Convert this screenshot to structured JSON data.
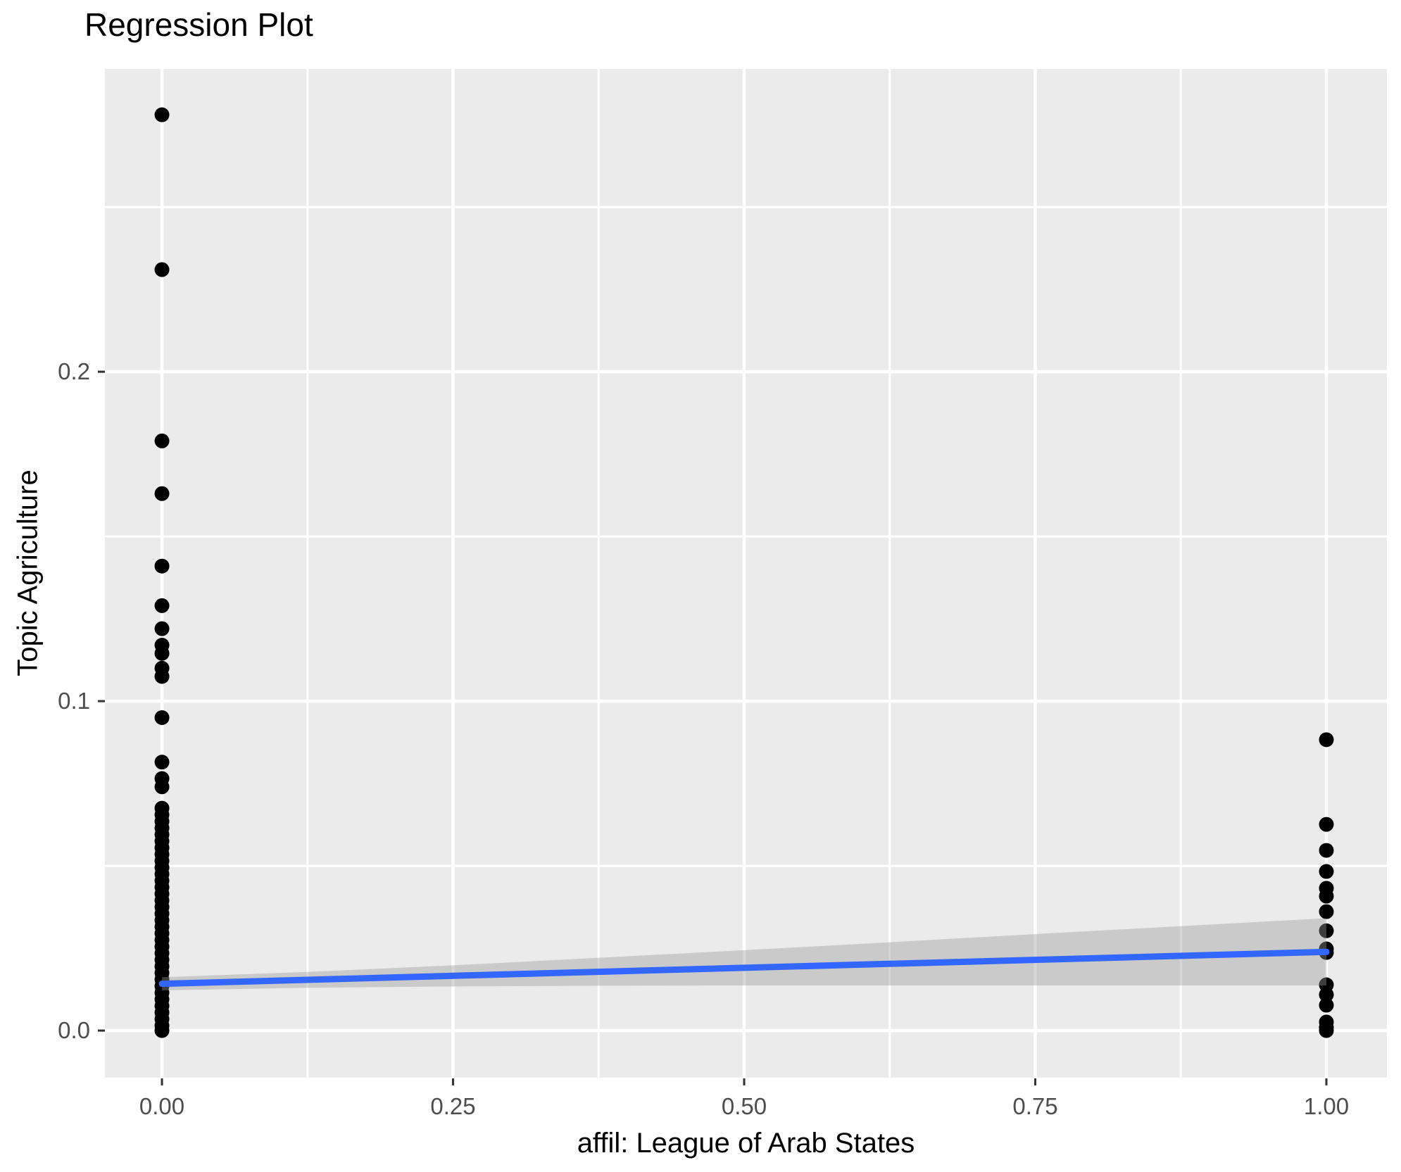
{
  "title": "Regression Plot",
  "colors": {
    "panel_background": "#EBEBEB",
    "gridline": "#FFFFFF",
    "point": "#000000",
    "regression_line": "#3366FF",
    "confidence_band": "rgba(153,153,153,0.4)",
    "tick_mark": "#333333",
    "tick_label": "#4D4D4D",
    "title_text": "#000000"
  },
  "chart_data": {
    "type": "scatter",
    "title": "Regression Plot",
    "xlabel": "affil: League of Arab States",
    "ylabel": "Topic Agriculture",
    "grid": "on",
    "legend": "none",
    "axes": {
      "x": {
        "label": "affil: League of Arab States",
        "ticks": [
          0,
          0.25,
          0.5,
          0.75,
          1
        ],
        "tick_labels": [
          "0.00",
          "0.25",
          "0.50",
          "0.75",
          "1.00"
        ],
        "minor_ticks": [
          0.125,
          0.375,
          0.625,
          0.875
        ],
        "lim": [
          -0.049,
          1.052
        ]
      },
      "y": {
        "label": "Topic Agriculture",
        "ticks": [
          0,
          0.1,
          0.2
        ],
        "tick_labels": [
          "0.0",
          "0.1",
          "0.2"
        ],
        "minor_ticks": [
          0.05,
          0.15,
          0.25
        ],
        "lim": [
          -0.0143,
          0.2919
        ]
      }
    },
    "series": [
      {
        "name": "affil = 0",
        "x_value": 0,
        "values": [
          0.278,
          0.231,
          0.179,
          0.163,
          0.141,
          0.129,
          0.122,
          0.117,
          0.1145,
          0.11,
          0.1075,
          0.095,
          0.0815,
          0.0765,
          0.074,
          0.0675,
          0.0655,
          0.0635,
          0.0615,
          0.0595,
          0.0575,
          0.0555,
          0.0535,
          0.0515,
          0.0495,
          0.0475,
          0.0455,
          0.0435,
          0.0415,
          0.0395,
          0.0375,
          0.0355,
          0.0335,
          0.0315,
          0.0295,
          0.0275,
          0.0255,
          0.0235,
          0.0215,
          0.0195,
          0.0175,
          0.0155,
          0.0135,
          0.0115,
          0.0095,
          0.0075,
          0.0055,
          0.0035,
          0.0015,
          0
        ]
      },
      {
        "name": "affil = 1",
        "x_value": 1,
        "values": [
          0.0883,
          0.0626,
          0.0547,
          0.0483,
          0.0432,
          0.0408,
          0.0361,
          0.0303,
          0.0248,
          0.0237,
          0.0139,
          0.0109,
          0.0077,
          0.0026,
          0.001,
          0
        ]
      }
    ],
    "regression_line": {
      "x": [
        0,
        1
      ],
      "y": [
        0.0142,
        0.0239
      ],
      "intercept": 0.0142,
      "slope": 0.0097
    },
    "confidence_band": {
      "x": [
        0,
        0.125,
        0.25,
        0.375,
        0.5,
        0.625,
        0.75,
        0.875,
        1
      ],
      "upper": [
        0.0162,
        0.0178,
        0.0198,
        0.0221,
        0.0244,
        0.0268,
        0.0293,
        0.0317,
        0.0341
      ],
      "lower": [
        0.0122,
        0.013,
        0.0134,
        0.0136,
        0.0137,
        0.0137,
        0.0137,
        0.0137,
        0.0137
      ]
    }
  }
}
